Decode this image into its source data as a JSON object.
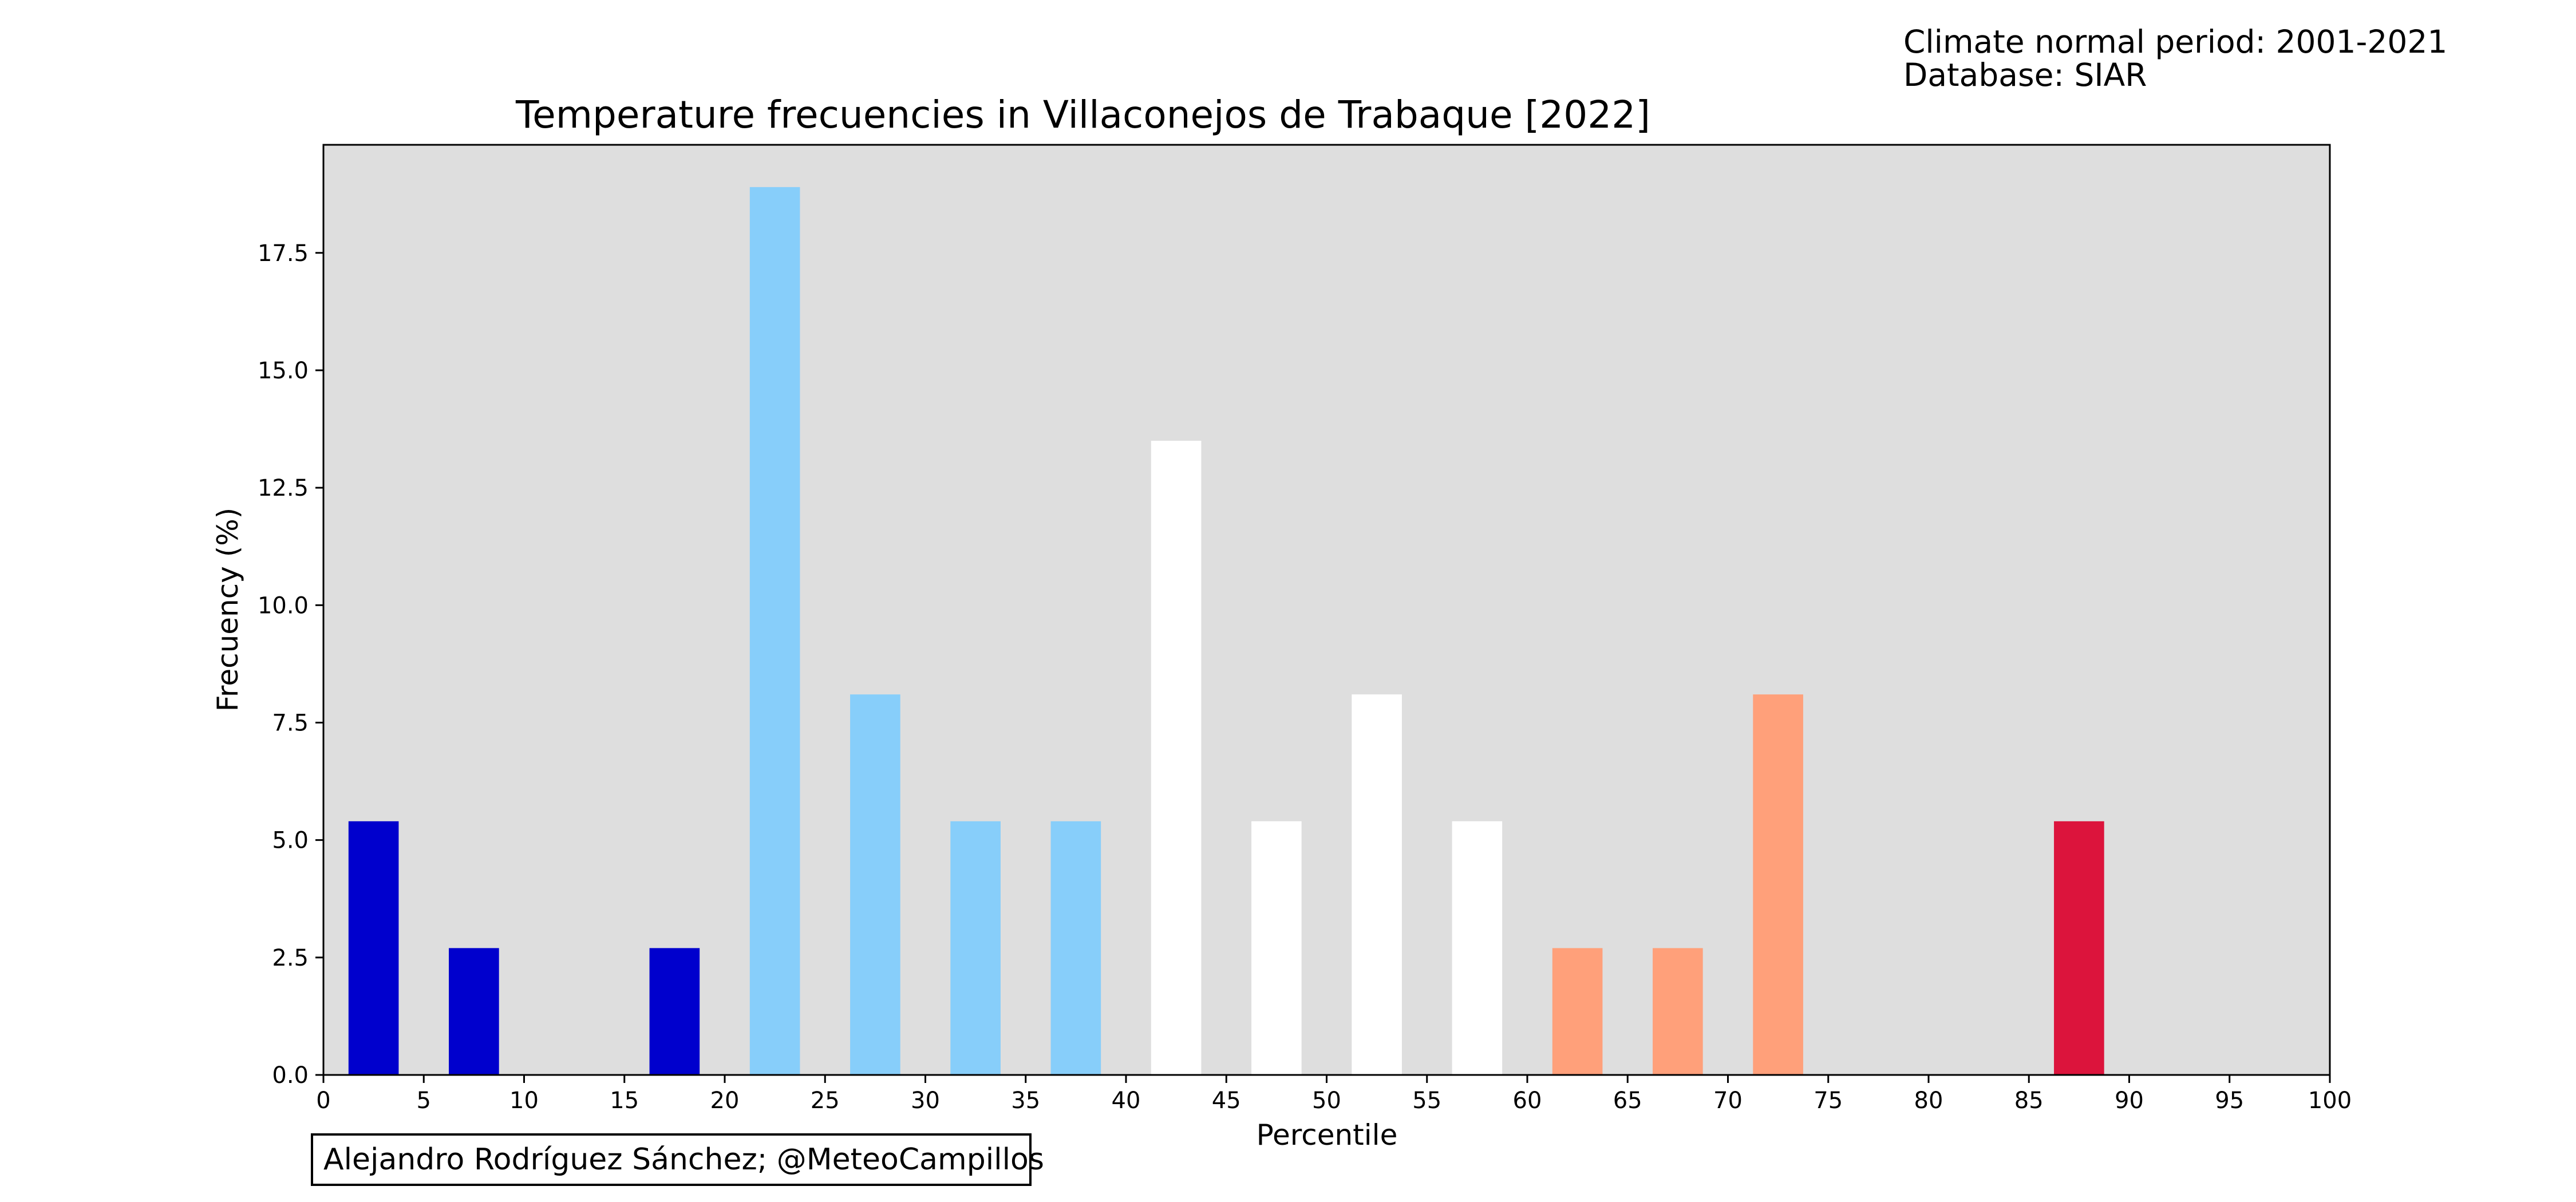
{
  "chart_data": {
    "type": "bar",
    "title": "Temperature frecuencies in Villaconejos de Trabaque [2022]",
    "xlabel": "Percentile",
    "ylabel": "Frecuency (%)",
    "xlim": [
      0,
      100
    ],
    "ylim": [
      0,
      19.8
    ],
    "x_ticks": [
      "0",
      "5",
      "10",
      "15",
      "20",
      "25",
      "30",
      "35",
      "40",
      "45",
      "50",
      "55",
      "60",
      "65",
      "70",
      "75",
      "80",
      "85",
      "90",
      "95",
      "100"
    ],
    "y_ticks": [
      "0.0",
      "2.5",
      "5.0",
      "7.5",
      "10.0",
      "12.5",
      "15.0",
      "17.5"
    ],
    "grid": false,
    "legend": "none",
    "background_color": "#dedede",
    "bars": [
      {
        "x": 2.5,
        "value": 5.4,
        "color": "#0000cd"
      },
      {
        "x": 7.5,
        "value": 2.7,
        "color": "#0000cd"
      },
      {
        "x": 17.5,
        "value": 2.7,
        "color": "#0000cd"
      },
      {
        "x": 22.5,
        "value": 18.9,
        "color": "#87cefa"
      },
      {
        "x": 27.5,
        "value": 8.1,
        "color": "#87cefa"
      },
      {
        "x": 32.5,
        "value": 5.4,
        "color": "#87cefa"
      },
      {
        "x": 37.5,
        "value": 5.4,
        "color": "#87cefa"
      },
      {
        "x": 42.5,
        "value": 13.5,
        "color": "#ffffff"
      },
      {
        "x": 47.5,
        "value": 5.4,
        "color": "#ffffff"
      },
      {
        "x": 52.5,
        "value": 8.1,
        "color": "#ffffff"
      },
      {
        "x": 57.5,
        "value": 5.4,
        "color": "#ffffff"
      },
      {
        "x": 62.5,
        "value": 2.7,
        "color": "#ffa07a"
      },
      {
        "x": 67.5,
        "value": 2.7,
        "color": "#ffa07a"
      },
      {
        "x": 72.5,
        "value": 8.1,
        "color": "#ffa07a"
      },
      {
        "x": 87.5,
        "value": 5.4,
        "color": "#dc143c"
      }
    ]
  },
  "annotations": {
    "climate_period": "Climate normal period: 2001-2021",
    "database": "Database: SIAR",
    "credit": "Alejandro Rodríguez Sánchez; @MeteoCampillos"
  }
}
